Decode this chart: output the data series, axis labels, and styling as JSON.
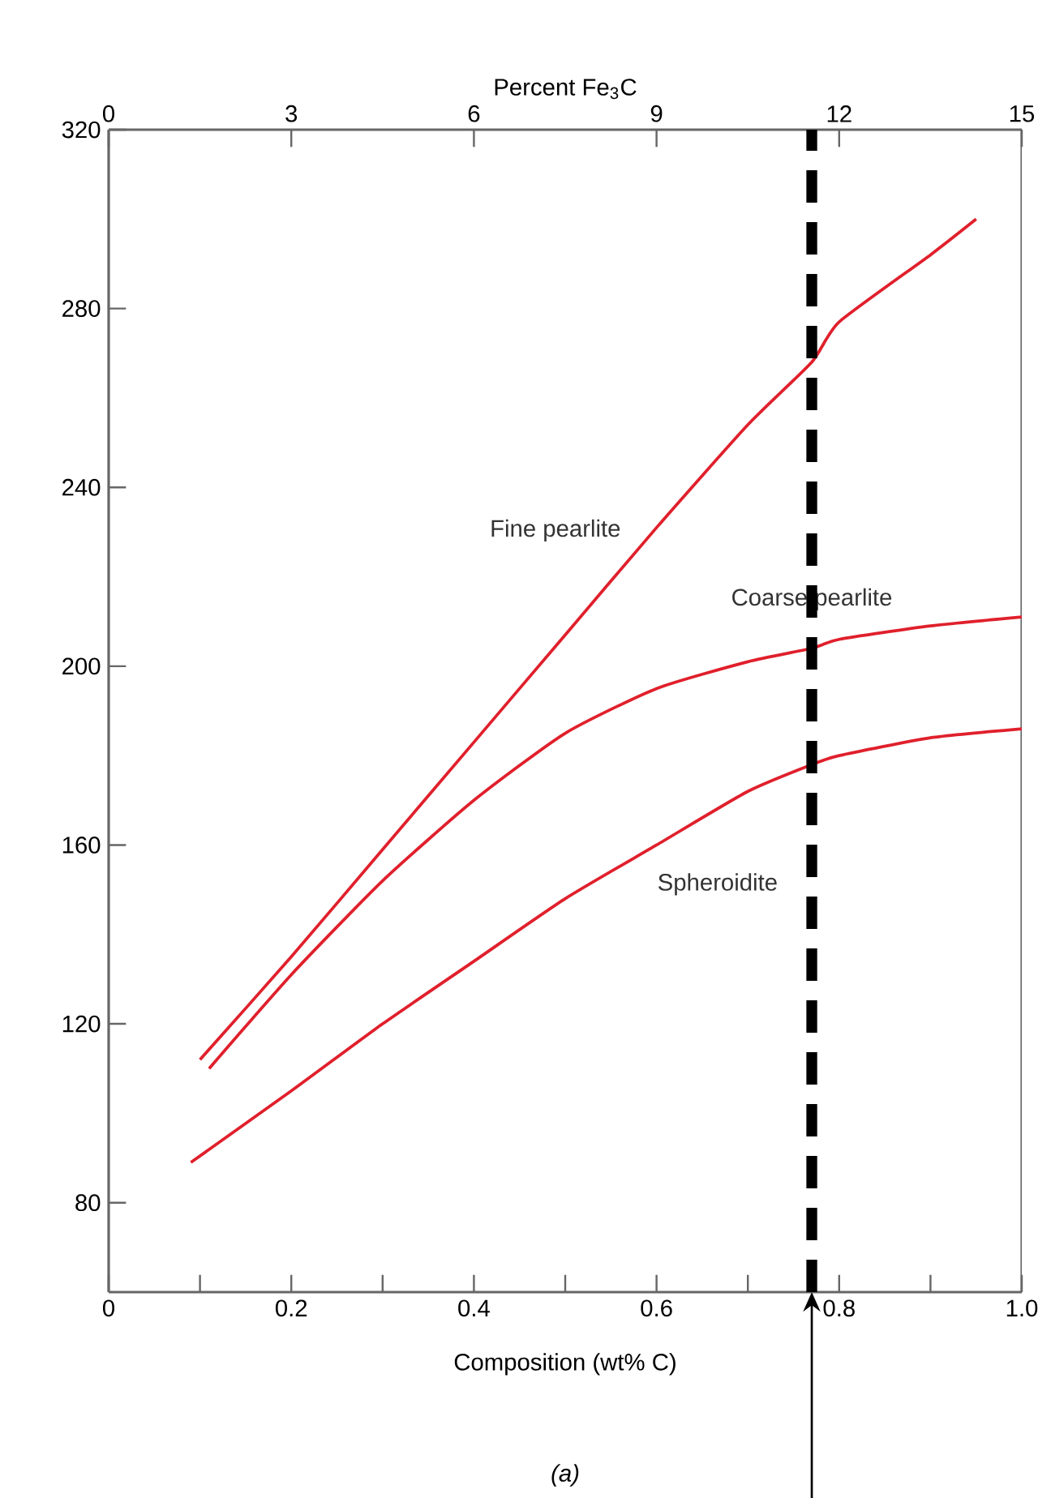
{
  "chart_data": {
    "type": "line",
    "xlabel": "Composition (wt% C)",
    "x2label": "Percent Fe$_{3}$C",
    "series": [
      {
        "name": "Fine pearlite",
        "color": "#e0202c",
        "x": [
          0.1,
          0.2,
          0.3,
          0.4,
          0.5,
          0.6,
          0.7,
          0.77,
          0.8,
          0.9,
          0.95
        ],
        "values": [
          112,
          135,
          159,
          183,
          207,
          231,
          254,
          268,
          277,
          292,
          300
        ]
      },
      {
        "name": "Coarse pearlite",
        "color": "#e0202c",
        "x": [
          0.11,
          0.2,
          0.3,
          0.4,
          0.5,
          0.6,
          0.7,
          0.77,
          0.8,
          0.9,
          1.0
        ],
        "values": [
          110,
          131,
          152,
          170,
          185,
          195,
          201,
          204,
          206,
          209,
          211
        ]
      },
      {
        "name": "Spheroidite",
        "color": "#e0202c",
        "x": [
          0.09,
          0.2,
          0.3,
          0.4,
          0.5,
          0.6,
          0.7,
          0.77,
          0.8,
          0.9,
          1.0
        ],
        "values": [
          89,
          105,
          120,
          134,
          148,
          160,
          172,
          178,
          180,
          184,
          186
        ]
      }
    ],
    "xlim": [
      0,
      1.0
    ],
    "ylim": [
      60,
      320
    ],
    "xticks": [
      0,
      {
        "value": 0.1,
        "label": null
      },
      {
        "value": 0.2,
        "label": "0.2"
      },
      {
        "value": 0.3,
        "label": null
      },
      {
        "value": 0.4,
        "label": "0.4"
      },
      {
        "value": 0.5,
        "label": null
      },
      {
        "value": 0.6,
        "label": "0.6"
      },
      {
        "value": 0.7,
        "label": null
      },
      {
        "value": 0.8,
        "label": "0.8"
      },
      {
        "value": 0.9,
        "label": null
      },
      {
        "value": 1.0,
        "label": "1.0"
      }
    ],
    "yticks": [
      80,
      120,
      160,
      200,
      240,
      280,
      320
    ],
    "x2lim": [
      0,
      15
    ],
    "x2ticks": [
      0,
      3,
      6,
      9,
      12,
      15
    ],
    "ref_lines": [
      {
        "axis": "x",
        "value": 0.77,
        "color": "#000000",
        "line_style": "dashed"
      }
    ],
    "annotations": [
      "(a)"
    ],
    "grid": false,
    "marker": "none",
    "line_style": "solid"
  }
}
